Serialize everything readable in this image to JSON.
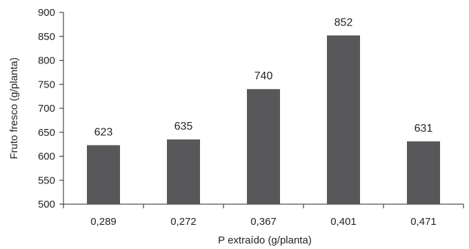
{
  "chart_data": {
    "type": "bar",
    "title": "",
    "xlabel": "P extraído (g/planta)",
    "ylabel": "Fruto fresco (g/planta)",
    "categories": [
      "0,289",
      "0,272",
      "0,367",
      "0,401",
      "0,471"
    ],
    "values": [
      623,
      635,
      740,
      852,
      631
    ],
    "data_labels": [
      "623",
      "635",
      "740",
      "852",
      "631"
    ],
    "ylim": [
      500,
      900
    ],
    "yticks": [
      500,
      550,
      600,
      650,
      700,
      750,
      800,
      850,
      900
    ],
    "grid": false,
    "legend": "none",
    "bar_color": "#58585a",
    "axis_color": "#222222"
  }
}
